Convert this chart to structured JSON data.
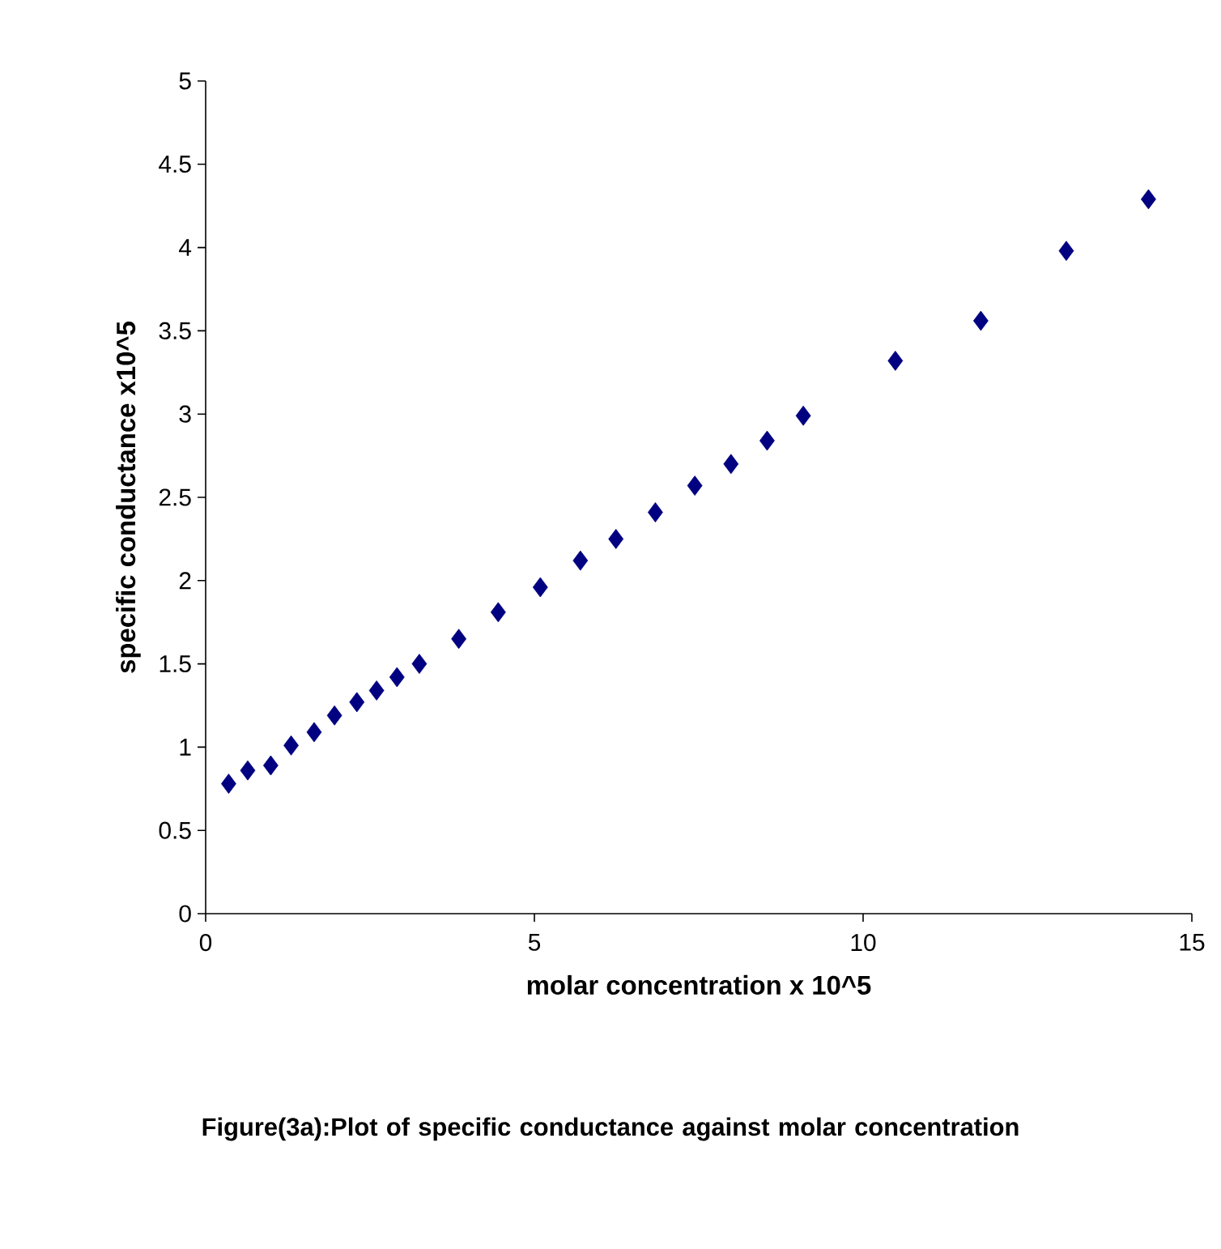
{
  "chart_data": {
    "type": "scatter",
    "xlabel": "molar concentration x 10^5",
    "ylabel": "specific conductance x10^5",
    "annotations": [
      "Figure(3a):Plot of specific conductance against molar concentration"
    ],
    "x": [
      0.35,
      0.64,
      0.99,
      1.3,
      1.65,
      1.96,
      2.3,
      2.6,
      2.91,
      3.25,
      3.85,
      4.45,
      5.09,
      5.7,
      6.24,
      6.84,
      7.44,
      7.99,
      8.54,
      9.09,
      10.49,
      11.79,
      13.09,
      14.34
    ],
    "series": [
      {
        "color": "#000080",
        "values": [
          0.78,
          0.86,
          0.89,
          1.01,
          1.09,
          1.19,
          1.27,
          1.34,
          1.42,
          1.5,
          1.65,
          1.81,
          1.96,
          2.12,
          2.25,
          2.41,
          2.57,
          2.7,
          2.84,
          2.99,
          3.32,
          3.56,
          3.98,
          4.29
        ]
      }
    ],
    "xlim": [
      0,
      15
    ],
    "xticks": [
      0,
      5,
      10,
      15
    ],
    "ylim": [
      0,
      5
    ],
    "yticks": [
      0,
      0.5,
      1,
      1.5,
      2,
      2.5,
      3,
      3.5,
      4,
      4.5,
      5
    ],
    "marker": "diamond",
    "grid": false
  }
}
